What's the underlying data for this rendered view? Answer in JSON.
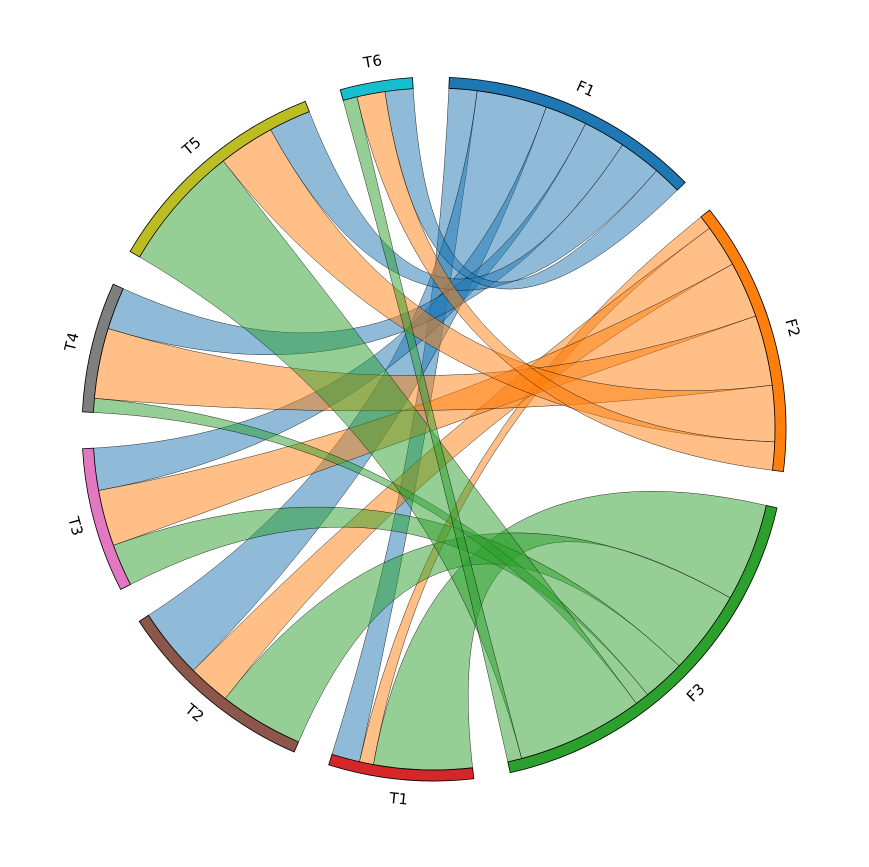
{
  "chart_data": {
    "type": "chord",
    "nodes": [
      {
        "name": "F1",
        "color": "#1f77b4"
      },
      {
        "name": "F2",
        "color": "#ff7f0e"
      },
      {
        "name": "F3",
        "color": "#2ca02c"
      },
      {
        "name": "T1",
        "color": "#d62728"
      },
      {
        "name": "T2",
        "color": "#8c564b"
      },
      {
        "name": "T3",
        "color": "#e377c2"
      },
      {
        "name": "T4",
        "color": "#7f7f7f"
      },
      {
        "name": "T5",
        "color": "#bcbd22"
      },
      {
        "name": "T6",
        "color": "#17becf"
      }
    ],
    "links": [
      {
        "source": "F1",
        "target": "T1",
        "value": 2
      },
      {
        "source": "F1",
        "target": "T2",
        "value": 5
      },
      {
        "source": "F1",
        "target": "T3",
        "value": 3
      },
      {
        "source": "F1",
        "target": "T4",
        "value": 3
      },
      {
        "source": "F1",
        "target": "T5",
        "value": 3
      },
      {
        "source": "F1",
        "target": "T6",
        "value": 2
      },
      {
        "source": "F2",
        "target": "T1",
        "value": 1
      },
      {
        "source": "F2",
        "target": "T2",
        "value": 3
      },
      {
        "source": "F2",
        "target": "T3",
        "value": 4
      },
      {
        "source": "F2",
        "target": "T4",
        "value": 5
      },
      {
        "source": "F2",
        "target": "T5",
        "value": 4
      },
      {
        "source": "F2",
        "target": "T6",
        "value": 2
      },
      {
        "source": "F3",
        "target": "T1",
        "value": 7
      },
      {
        "source": "F3",
        "target": "T2",
        "value": 6
      },
      {
        "source": "F3",
        "target": "T3",
        "value": 3
      },
      {
        "source": "F3",
        "target": "T4",
        "value": 1
      },
      {
        "source": "F3",
        "target": "T5",
        "value": 9
      },
      {
        "source": "F3",
        "target": "T6",
        "value": 1
      }
    ]
  }
}
